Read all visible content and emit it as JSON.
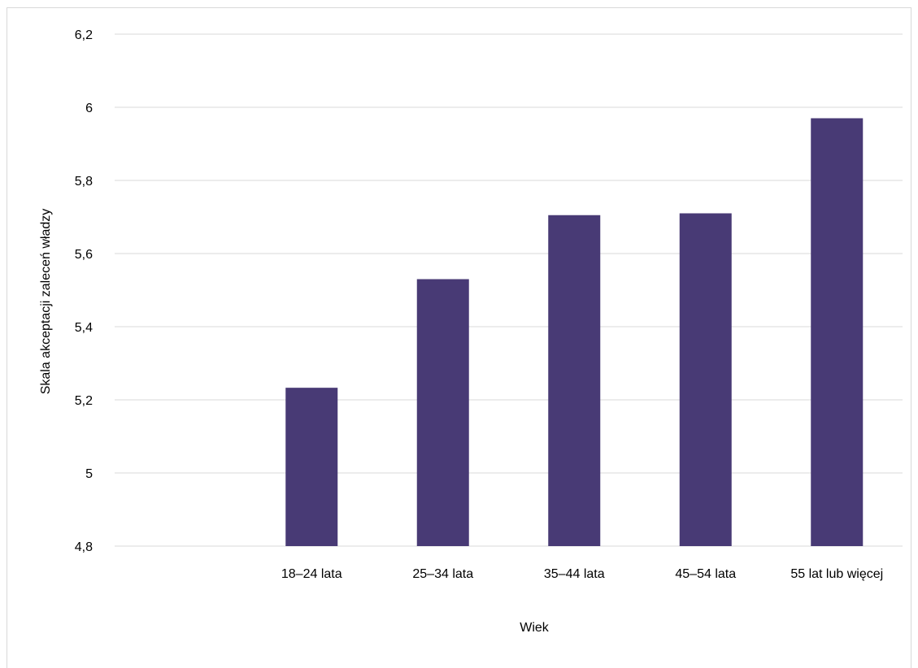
{
  "chart_data": {
    "type": "bar",
    "categories": [
      "18–24 lata",
      "25–34 lata",
      "35–44 lata",
      "45–54 lata",
      "55 lat lub więcej"
    ],
    "values": [
      5.233,
      5.53,
      5.705,
      5.71,
      5.97
    ],
    "xlabel": "Wiek",
    "ylabel": "Skala akceptacji zaleceń władzy",
    "ylim": [
      4.8,
      6.2
    ],
    "yticks": [
      "4,8",
      "5",
      "5,2",
      "5,4",
      "5,6",
      "5,8",
      "6",
      "6,2"
    ],
    "ytick_values": [
      4.8,
      5.0,
      5.2,
      5.4,
      5.6,
      5.8,
      6.0,
      6.2
    ],
    "grid": true,
    "legend": "none",
    "bar_color": "#483a75",
    "grid_color": "#d9d9d9"
  }
}
